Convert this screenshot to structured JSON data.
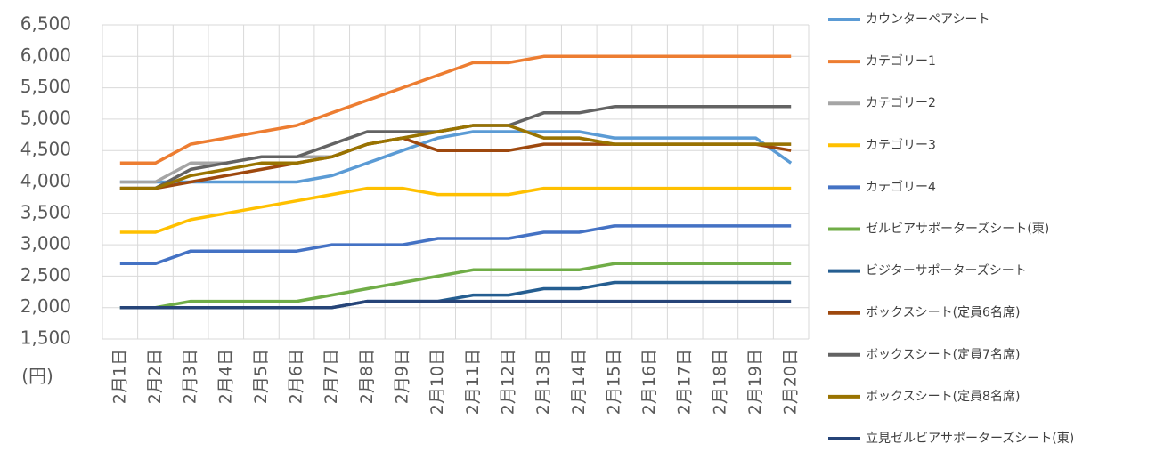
{
  "chart_data": {
    "type": "line",
    "y_label": "(円)",
    "categories": [
      "2月1日",
      "2月2日",
      "2月3日",
      "2月4日",
      "2月5日",
      "2月6日",
      "2月7日",
      "2月8日",
      "2月9日",
      "2月10日",
      "2月11日",
      "2月12日",
      "2月13日",
      "2月14日",
      "2月15日",
      "2月16日",
      "2月17日",
      "2月18日",
      "2月19日",
      "2月20日"
    ],
    "ylim": [
      1500,
      6500
    ],
    "yticks": [
      {
        "value": 1500,
        "label": "1,500"
      },
      {
        "value": 2000,
        "label": "2,000"
      },
      {
        "value": 2500,
        "label": "2,500"
      },
      {
        "value": 3000,
        "label": "3,000"
      },
      {
        "value": 3500,
        "label": "3,500"
      },
      {
        "value": 4000,
        "label": "4,000"
      },
      {
        "value": 4500,
        "label": "4,500"
      },
      {
        "value": 5000,
        "label": "5,000"
      },
      {
        "value": 5500,
        "label": "5,500"
      },
      {
        "value": 6000,
        "label": "6,000"
      },
      {
        "value": 6500,
        "label": "6,500"
      }
    ],
    "grid": true,
    "legend": "right",
    "series": [
      {
        "name": "カウンターペアシート",
        "color": "#5b9bd5",
        "values": [
          4000,
          4000,
          4000,
          4000,
          4000,
          4000,
          4100,
          4300,
          4500,
          4700,
          4800,
          4800,
          4800,
          4800,
          4700,
          4700,
          4700,
          4700,
          4700,
          4300
        ]
      },
      {
        "name": "カテゴリー1",
        "color": "#ed7d31",
        "values": [
          4300,
          4300,
          4600,
          4700,
          4800,
          4900,
          5100,
          5300,
          5500,
          5700,
          5900,
          5900,
          6000,
          6000,
          6000,
          6000,
          6000,
          6000,
          6000,
          6000
        ]
      },
      {
        "name": "カテゴリー2",
        "color": "#a5a5a5",
        "values": [
          4000,
          4000,
          4300,
          4300,
          4400,
          4400,
          4400,
          4600,
          4700,
          4800,
          4900,
          4900,
          4700,
          4700,
          4600,
          4600,
          4600,
          4600,
          4600,
          4600
        ]
      },
      {
        "name": "カテゴリー3",
        "color": "#ffc000",
        "values": [
          3200,
          3200,
          3400,
          3500,
          3600,
          3700,
          3800,
          3900,
          3900,
          3800,
          3800,
          3800,
          3900,
          3900,
          3900,
          3900,
          3900,
          3900,
          3900,
          3900
        ]
      },
      {
        "name": "カテゴリー4",
        "color": "#4472c4",
        "values": [
          2700,
          2700,
          2900,
          2900,
          2900,
          2900,
          3000,
          3000,
          3000,
          3100,
          3100,
          3100,
          3200,
          3200,
          3300,
          3300,
          3300,
          3300,
          3300,
          3300
        ]
      },
      {
        "name": "ゼルビアサポーターズシート(東)",
        "color": "#70ad47",
        "values": [
          2000,
          2000,
          2100,
          2100,
          2100,
          2100,
          2200,
          2300,
          2400,
          2500,
          2600,
          2600,
          2600,
          2600,
          2700,
          2700,
          2700,
          2700,
          2700,
          2700
        ]
      },
      {
        "name": "ビジターサポーターズシート",
        "color": "#255e91",
        "values": [
          2000,
          2000,
          2000,
          2000,
          2000,
          2000,
          2000,
          2100,
          2100,
          2100,
          2200,
          2200,
          2300,
          2300,
          2400,
          2400,
          2400,
          2400,
          2400,
          2400
        ]
      },
      {
        "name": "ボックスシート(定員6名席)",
        "color": "#9e480e",
        "values": [
          3900,
          3900,
          4000,
          4100,
          4200,
          4300,
          4400,
          4600,
          4700,
          4500,
          4500,
          4500,
          4600,
          4600,
          4600,
          4600,
          4600,
          4600,
          4600,
          4500
        ]
      },
      {
        "name": "ボックスシート(定員7名席)",
        "color": "#636363",
        "values": [
          3900,
          3900,
          4200,
          4300,
          4400,
          4400,
          4600,
          4800,
          4800,
          4800,
          4900,
          4900,
          5100,
          5100,
          5200,
          5200,
          5200,
          5200,
          5200,
          5200
        ]
      },
      {
        "name": "ボックスシート(定員8名席)",
        "color": "#997300",
        "values": [
          3900,
          3900,
          4100,
          4200,
          4300,
          4300,
          4400,
          4600,
          4700,
          4800,
          4900,
          4900,
          4700,
          4700,
          4600,
          4600,
          4600,
          4600,
          4600,
          4600
        ]
      },
      {
        "name": "立見ゼルビアサポーターズシート(東)",
        "color": "#264478",
        "values": [
          2000,
          2000,
          2000,
          2000,
          2000,
          2000,
          2000,
          2100,
          2100,
          2100,
          2100,
          2100,
          2100,
          2100,
          2100,
          2100,
          2100,
          2100,
          2100,
          2100
        ]
      }
    ]
  }
}
